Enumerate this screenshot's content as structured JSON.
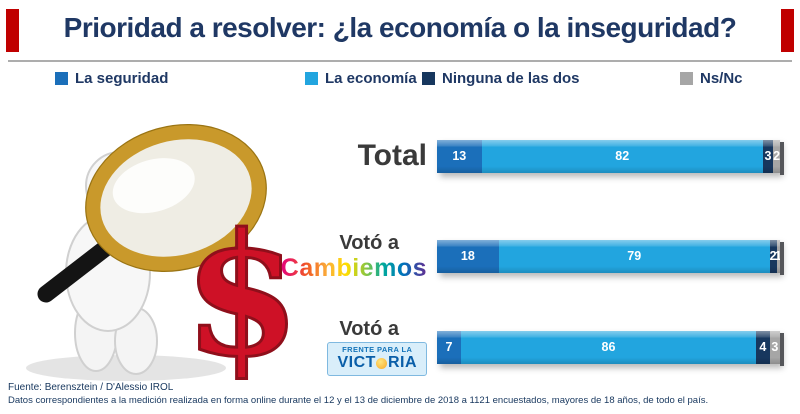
{
  "title": "Prioridad a resolver: ¿la economía o la inseguridad?",
  "colors": {
    "accent_red": "#C00000",
    "title_navy": "#1F3864",
    "footer_navy": "#17375E"
  },
  "legend": [
    {
      "label": "La seguridad",
      "color": "#1B6FBA"
    },
    {
      "label": "La economía",
      "color": "#22A5DF"
    },
    {
      "label": "Ninguna de las dos",
      "color": "#17375E"
    },
    {
      "label": "Ns/Nc",
      "color": "#A6A6A6"
    }
  ],
  "rows": [
    {
      "label_main": "Total"
    },
    {
      "label_top": "Votó a",
      "label_main": "Cambiemos"
    },
    {
      "label_top": "Votó a",
      "logo_line1": "FRENTE PARA LA",
      "logo_word_pre": "VICT",
      "logo_word_post": "RIA",
      "logo_word_full": "VICTORIA"
    }
  ],
  "icons": {
    "dollar": "$",
    "victoria_sun": "yellow-sun-circle",
    "illustration": "figure-with-magnifying-glass-and-dollar-sign"
  },
  "footer": {
    "line1": "Fuente: Berensztein / D'Alessio IROL",
    "line2": "Datos correspondientes a la medición realizada en forma online durante el 12 y el 13 de diciembre de 2018 a 1121 encuestados, mayores de 18 años, de todo el país."
  },
  "chart_data": {
    "type": "bar",
    "orientation": "horizontal",
    "stacked": true,
    "title": "Prioridad a resolver: ¿la economía o la inseguridad?",
    "categories": [
      "Total",
      "Votó a Cambiemos",
      "Votó a Frente para la Victoria"
    ],
    "series": [
      {
        "name": "La seguridad",
        "values": [
          13,
          18,
          7
        ],
        "color": "#1B6FBA"
      },
      {
        "name": "La economía",
        "values": [
          82,
          79,
          86
        ],
        "color": "#22A5DF"
      },
      {
        "name": "Ninguna de las dos",
        "values": [
          3,
          2,
          4
        ],
        "color": "#17375E"
      },
      {
        "name": "Ns/Nc",
        "values": [
          2,
          1,
          3
        ],
        "color": "#A6A6A6"
      }
    ],
    "xlim": [
      0,
      100
    ],
    "value_labels": true,
    "legend_position": "top",
    "grid": false
  }
}
